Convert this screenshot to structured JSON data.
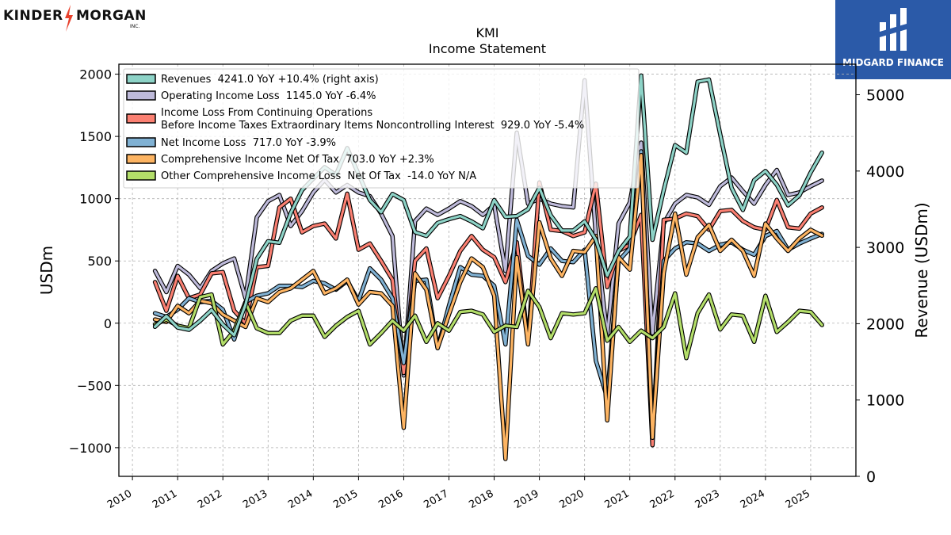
{
  "logos": {
    "left_a": "KINDER",
    "left_b": "MORGAN",
    "left_inc": "INC.",
    "right": "MIDGARD FINANCE"
  },
  "chart_data": {
    "type": "line",
    "title": "KMI",
    "subtitle": "Income Statement",
    "ylabel": "USDm",
    "y2label": "Revenue (USDm)",
    "ylim": [
      -1230,
      2080
    ],
    "y2lim": [
      0,
      5400
    ],
    "yticks": [
      -1000,
      -500,
      0,
      500,
      1000,
      1500,
      2000
    ],
    "y2ticks": [
      0,
      1000,
      2000,
      3000,
      4000,
      5000
    ],
    "ytick_labels": [
      "−1000",
      "−500",
      "0",
      "500",
      "1000",
      "1500",
      "2000"
    ],
    "y2tick_labels": [
      "0",
      "1000",
      "2000",
      "3000",
      "4000",
      "5000"
    ],
    "xlim": [
      2009.7,
      2026.0
    ],
    "xticks": [
      2010,
      2011,
      2012,
      2013,
      2014,
      2015,
      2016,
      2017,
      2018,
      2019,
      2020,
      2021,
      2022,
      2023,
      2024,
      2025
    ],
    "xtick_labels": [
      "2010",
      "2011",
      "2012",
      "2013",
      "2014",
      "2015",
      "2016",
      "2017",
      "2018",
      "2019",
      "2020",
      "2021",
      "2022",
      "2023",
      "2024",
      "2025"
    ],
    "grid": true,
    "legend_position": "upper-left",
    "x": [
      2010.5,
      2010.75,
      2011.0,
      2011.25,
      2011.5,
      2011.75,
      2012.0,
      2012.25,
      2012.5,
      2012.75,
      2013.0,
      2013.25,
      2013.5,
      2013.75,
      2014.0,
      2014.25,
      2014.5,
      2014.75,
      2015.0,
      2015.25,
      2015.5,
      2015.75,
      2016.0,
      2016.25,
      2016.5,
      2016.75,
      2017.0,
      2017.25,
      2017.5,
      2017.75,
      2018.0,
      2018.25,
      2018.5,
      2018.75,
      2019.0,
      2019.25,
      2019.5,
      2019.75,
      2020.0,
      2020.25,
      2020.5,
      2020.75,
      2021.0,
      2021.25,
      2021.5,
      2021.75,
      2022.0,
      2022.25,
      2022.5,
      2022.75,
      2023.0,
      2023.25,
      2023.5,
      2023.75,
      2024.0,
      2024.25,
      2024.5,
      2024.75,
      2025.0,
      2025.25
    ],
    "series": [
      {
        "name": "Revenues",
        "legend": "Revenues  4241.0 YoY +10.4% (right axis)",
        "axis": "right",
        "color": "#8dd3c7",
        "values": [
          1960,
          2100,
          1950,
          1920,
          2040,
          2180,
          1990,
          1850,
          2250,
          2850,
          3080,
          3060,
          3450,
          3750,
          3900,
          4050,
          3950,
          4300,
          3960,
          3620,
          3460,
          3700,
          3620,
          3200,
          3150,
          3320,
          3370,
          3410,
          3340,
          3250,
          3620,
          3400,
          3410,
          3500,
          3780,
          3420,
          3220,
          3220,
          3340,
          3100,
          2630,
          2950,
          3140,
          5250,
          3100,
          3750,
          4340,
          4240,
          5170,
          5200,
          4480,
          3780,
          3490,
          3880,
          4000,
          3820,
          3550,
          3680,
          3980,
          4241
        ]
      },
      {
        "name": "Operating Income Loss",
        "legend": "Operating Income Loss  1145.0 YoY -6.4%",
        "axis": "left",
        "color": "#bebada",
        "values": [
          420,
          250,
          460,
          390,
          280,
          420,
          480,
          520,
          200,
          850,
          980,
          1030,
          780,
          900,
          1050,
          1150,
          1050,
          1110,
          1050,
          1020,
          880,
          700,
          -420,
          820,
          920,
          870,
          920,
          980,
          940,
          870,
          950,
          420,
          1530,
          960,
          1000,
          960,
          940,
          930,
          1950,
          700,
          -100,
          800,
          970,
          1450,
          -80,
          800,
          960,
          1030,
          1010,
          950,
          1100,
          1170,
          1060,
          960,
          1110,
          1230,
          1030,
          1050,
          1100,
          1145
        ]
      },
      {
        "name": "Income Loss From Continuing Operations Before Income Taxes Extraordinary Items Noncontrolling Interest",
        "legend_lines": [
          "Income Loss From Continuing Operations",
          "Before Income Taxes Extraordinary Items Noncontrolling Interest  929.0 YoY -5.4%"
        ],
        "axis": "left",
        "color": "#fb8072",
        "values": [
          330,
          100,
          380,
          200,
          230,
          400,
          410,
          100,
          0,
          450,
          460,
          930,
          1000,
          730,
          780,
          800,
          680,
          1040,
          590,
          640,
          500,
          350,
          -400,
          500,
          600,
          200,
          380,
          580,
          700,
          590,
          530,
          330,
          650,
          -160,
          1130,
          750,
          740,
          700,
          730,
          1120,
          290,
          580,
          630,
          870,
          -980,
          830,
          840,
          880,
          860,
          750,
          900,
          910,
          820,
          770,
          750,
          990,
          770,
          760,
          880,
          929
        ]
      },
      {
        "name": "Net Income Loss",
        "legend": "Net Income Loss  717.0 YoY -3.9%",
        "axis": "left",
        "color": "#80b1d3",
        "values": [
          80,
          50,
          110,
          200,
          170,
          180,
          110,
          -130,
          170,
          220,
          240,
          300,
          300,
          290,
          340,
          320,
          270,
          340,
          180,
          440,
          350,
          200,
          -320,
          340,
          350,
          -200,
          140,
          450,
          390,
          380,
          300,
          -170,
          830,
          540,
          470,
          600,
          500,
          490,
          590,
          -300,
          -600,
          500,
          600,
          1380,
          -870,
          500,
          600,
          650,
          640,
          580,
          630,
          650,
          590,
          550,
          700,
          740,
          590,
          640,
          680,
          717
        ]
      },
      {
        "name": "Comprehensive Income Net Of Tax",
        "legend": "Comprehensive Income Net Of Tax  703.0 YoY +2.3%",
        "axis": "left",
        "color": "#fdb462",
        "values": [
          30,
          10,
          140,
          80,
          180,
          160,
          70,
          20,
          -30,
          200,
          170,
          250,
          280,
          350,
          420,
          240,
          280,
          350,
          150,
          250,
          240,
          140,
          -840,
          400,
          270,
          -200,
          70,
          330,
          520,
          450,
          220,
          -1090,
          530,
          -170,
          810,
          520,
          380,
          580,
          570,
          700,
          -780,
          530,
          430,
          1350,
          -920,
          400,
          880,
          390,
          690,
          790,
          580,
          670,
          580,
          380,
          800,
          680,
          580,
          680,
          750,
          703
        ]
      },
      {
        "name": "Other Comprehensive Income Loss Net Of Tax",
        "legend": "Other Comprehensive Income Loss  Net Of Tax  -14.0 YoY N/A",
        "axis": "left",
        "color": "#b3de69",
        "values": [
          -10,
          30,
          -20,
          -40,
          210,
          230,
          -170,
          -60,
          170,
          -40,
          -80,
          -80,
          20,
          60,
          60,
          -110,
          -20,
          50,
          100,
          -170,
          -80,
          20,
          -60,
          60,
          -150,
          0,
          -60,
          90,
          100,
          70,
          -70,
          -20,
          -30,
          260,
          130,
          -120,
          80,
          70,
          80,
          280,
          -140,
          -30,
          -150,
          -60,
          -120,
          -30,
          240,
          -280,
          80,
          230,
          -50,
          70,
          60,
          -150,
          220,
          -70,
          10,
          100,
          90,
          -14
        ]
      }
    ]
  }
}
